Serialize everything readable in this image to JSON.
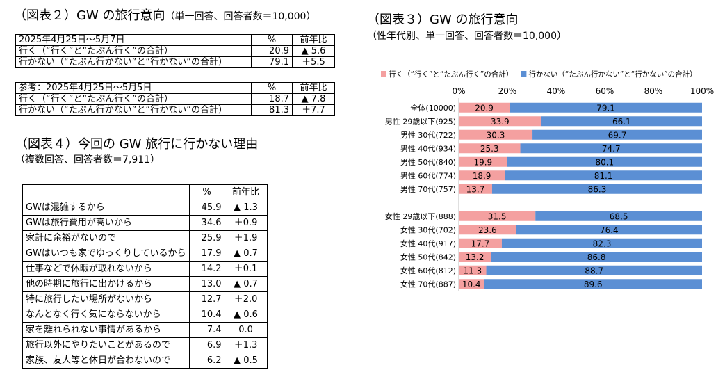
{
  "fig2": {
    "title": "（図表２）GW の旅行意向",
    "subtitle": "（単一回答、回答者数＝10,000）",
    "table1": {
      "header": [
        "2025年4月25日～5月7日",
        "%",
        "前年比"
      ],
      "rows": [
        [
          "行く（“行く”と“たぶん行く”の合計）",
          "20.9",
          "▲ 5.6"
        ],
        [
          "行かない（“たぶん行かない”と“行かない”の合計）",
          "79.1",
          "＋5.5"
        ]
      ]
    },
    "table2": {
      "header": [
        "参考：2025年4月25日～5月5日",
        "%",
        "前年比"
      ],
      "rows": [
        [
          "行く（“行く”と“たぶん行く”の合計）",
          "18.7",
          "▲ 7.8"
        ],
        [
          "行かない（“たぶん行かない”と“行かない”の合計）",
          "81.3",
          "＋7.7"
        ]
      ]
    }
  },
  "fig4": {
    "title": "（図表４）今回の GW 旅行に行かない理由",
    "subtitle": "（複数回答、回答者数＝7,911）",
    "header": [
      "",
      "%",
      "前年比"
    ],
    "rows": [
      [
        "GWは混雑するから",
        "45.9",
        "▲ 1.3"
      ],
      [
        "GWは旅行費用が高いから",
        "34.6",
        "＋0.9"
      ],
      [
        "家計に余裕がないので",
        "25.9",
        "＋1.9"
      ],
      [
        "GWはいつも家でゆっくりしているから",
        "17.9",
        "▲ 0.7"
      ],
      [
        "仕事などで休暇が取れないから",
        "14.2",
        "＋0.1"
      ],
      [
        "他の時期に旅行に出かけるから",
        "13.0",
        "▲ 0.7"
      ],
      [
        "特に旅行したい場所がないから",
        "12.7",
        "＋2.0"
      ],
      [
        "なんとなく行く気にならないから",
        "10.4",
        "▲ 0.6"
      ],
      [
        "家を離れられない事情があるから",
        "7.4",
        "0.0"
      ],
      [
        "旅行以外にやりたいことがあるので",
        "6.9",
        "＋1.3"
      ],
      [
        "家族、友人等と休日が合わないので",
        "6.2",
        "▲ 0.5"
      ]
    ]
  },
  "fig3": {
    "title": "（図表３）GW の旅行意向",
    "subtitle": "（性年代別、単一回答、回答者数＝10,000）"
  },
  "chart_data": {
    "type": "bar",
    "orientation": "horizontal",
    "stacked": "percent",
    "title": "",
    "xlabel": "",
    "ylabel": "",
    "xlim": [
      0,
      100
    ],
    "ticks": [
      "0%",
      "20%",
      "40%",
      "60%",
      "80%",
      "100%"
    ],
    "legend_position": "top",
    "categories": [
      "全体(10000)",
      "男性 29歳以下(925)",
      "男性 30代(722)",
      "男性 40代(934)",
      "男性 50代(840)",
      "男性 60代(774)",
      "男性 70代(757)",
      "",
      "女性 29歳以下(888)",
      "女性 30代(702)",
      "女性 40代(917)",
      "女性 50代(842)",
      "女性 60代(812)",
      "女性 70代(887)"
    ],
    "series": [
      {
        "name": "行く（“行く”と“たぶん行く”の合計）",
        "color": "#f4a0a0",
        "values": [
          20.9,
          33.9,
          30.3,
          25.3,
          19.9,
          18.9,
          13.7,
          null,
          31.5,
          23.6,
          17.7,
          13.2,
          11.3,
          10.4
        ]
      },
      {
        "name": "行かない（“たぶん行かない”と“行かない”の合計）",
        "color": "#5b8fd4",
        "values": [
          79.1,
          66.1,
          69.7,
          74.7,
          80.1,
          81.1,
          86.3,
          null,
          68.5,
          76.4,
          82.3,
          86.8,
          88.7,
          89.6
        ]
      }
    ],
    "grid": false
  }
}
